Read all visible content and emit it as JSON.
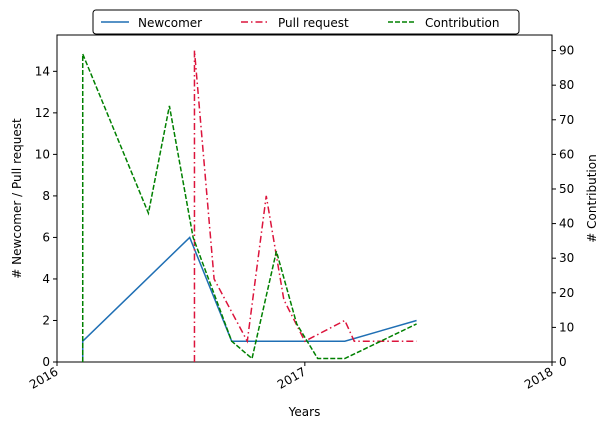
{
  "chart_data": {
    "type": "line",
    "xlabel": "Years",
    "ylabel_left": "# Newcomer / Pull request",
    "ylabel_right": "# Contribution",
    "x_ticks": [
      "2016",
      "2017",
      "2018"
    ],
    "x_range": [
      "2016-01-01",
      "2018-01-01"
    ],
    "ylim_left": [
      0,
      15.75
    ],
    "ylim_right": [
      0,
      94.5
    ],
    "y_ticks_left": [
      0,
      2,
      4,
      6,
      8,
      10,
      12,
      14
    ],
    "y_ticks_right": [
      0,
      10,
      20,
      30,
      40,
      50,
      60,
      70,
      80,
      90
    ],
    "grid": false,
    "legend_position": "top-center",
    "series": [
      {
        "name": "Newcomer",
        "axis": "left",
        "color": "#1f6fb4",
        "style": "solid",
        "points": [
          [
            "2016-02-08",
            0
          ],
          [
            "2016-02-08",
            1
          ],
          [
            "2016-07-15",
            6
          ],
          [
            "2016-09-15",
            1
          ],
          [
            "2017-03-01",
            1
          ],
          [
            "2017-06-15",
            2
          ]
        ]
      },
      {
        "name": "Pull request",
        "axis": "left",
        "color": "#dc143c",
        "style": "dashdot",
        "points": [
          [
            "2016-07-22",
            0
          ],
          [
            "2016-07-22",
            15
          ],
          [
            "2016-08-20",
            4
          ],
          [
            "2016-10-08",
            1
          ],
          [
            "2016-11-05",
            8
          ],
          [
            "2016-12-01",
            3
          ],
          [
            "2017-01-01",
            1
          ],
          [
            "2017-03-01",
            2
          ],
          [
            "2017-03-15",
            1
          ],
          [
            "2017-06-15",
            1
          ]
        ]
      },
      {
        "name": "Contribution",
        "axis": "right",
        "color": "#008000",
        "style": "dashed",
        "points": [
          [
            "2016-02-08",
            0
          ],
          [
            "2016-02-08",
            89
          ],
          [
            "2016-05-15",
            43
          ],
          [
            "2016-06-15",
            74
          ],
          [
            "2016-07-20",
            36
          ],
          [
            "2016-09-15",
            6
          ],
          [
            "2016-10-15",
            1
          ],
          [
            "2016-11-20",
            32
          ],
          [
            "2016-12-20",
            11
          ],
          [
            "2017-01-20",
            1
          ],
          [
            "2017-03-01",
            1
          ],
          [
            "2017-06-15",
            11
          ]
        ]
      }
    ]
  }
}
